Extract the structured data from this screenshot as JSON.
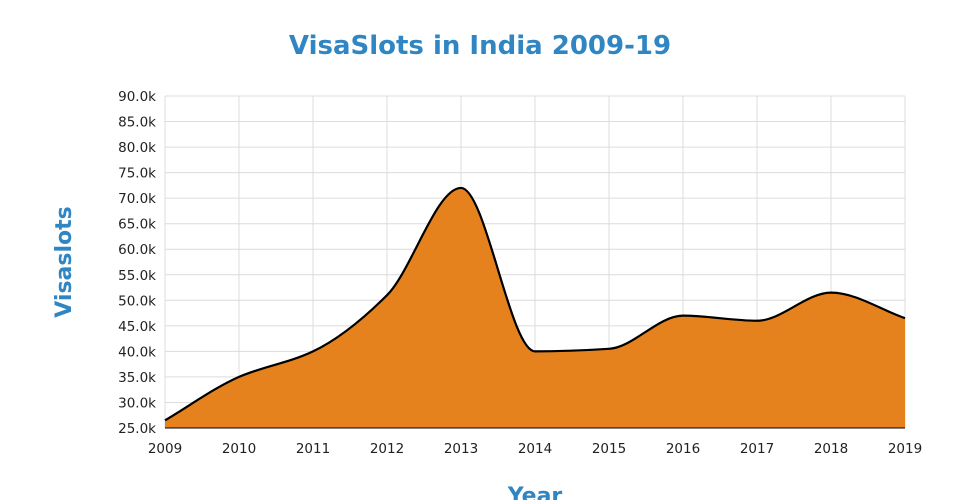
{
  "chart_data": {
    "type": "area",
    "title": "VisaSlots in India 2009-19",
    "xlabel": "Year",
    "ylabel": "Visaslots",
    "x": [
      2009,
      2010,
      2011,
      2012,
      2013,
      2014,
      2015,
      2016,
      2017,
      2018,
      2019
    ],
    "series": [
      {
        "values": [
          26500,
          35000,
          40000,
          51000,
          72000,
          40000,
          40500,
          47000,
          46000,
          51500,
          46500
        ]
      }
    ],
    "ylim": [
      25000,
      90000
    ],
    "xlim": [
      2009,
      2019
    ],
    "y_ticks": [
      25000,
      30000,
      35000,
      40000,
      45000,
      50000,
      55000,
      60000,
      65000,
      70000,
      75000,
      80000,
      85000,
      90000
    ],
    "y_tick_labels": [
      "25.0k",
      "30.0k",
      "35.0k",
      "40.0k",
      "45.0k",
      "50.0k",
      "55.0k",
      "60.0k",
      "65.0k",
      "70.0k",
      "75.0k",
      "80.0k",
      "85.0k",
      "90.0k"
    ],
    "x_tick_labels": [
      "2009",
      "2010",
      "2011",
      "2012",
      "2013",
      "2014",
      "2015",
      "2016",
      "2017",
      "2018",
      "2019"
    ],
    "grid": true,
    "legend": "none",
    "curve": "smooth",
    "colors": {
      "fill": "#e6821e",
      "line": "#000000",
      "title": "#2f86c3",
      "axis_title": "#2f86c3",
      "grid": "#dcdcdc"
    }
  }
}
